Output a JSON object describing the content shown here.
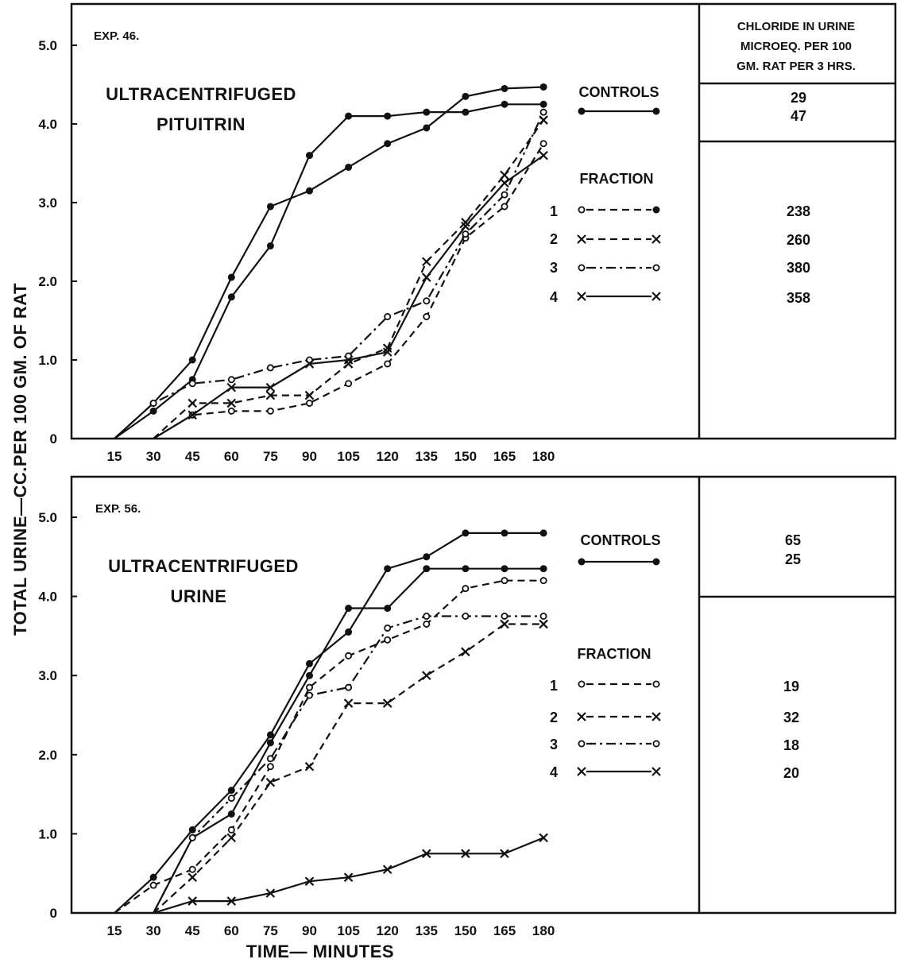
{
  "ylabel": "TOTAL URINE—CC.PER 100 GM. OF RAT",
  "xlabel": "TIME— MINUTES",
  "table_header": [
    "CHLORIDE IN URINE",
    "MICROEQ. PER 100",
    "GM. RAT PER 3 HRS."
  ],
  "legend": {
    "controls": "CONTROLS",
    "fraction": "FRACTION"
  },
  "chart_data": [
    {
      "type": "line",
      "exp": "EXP. 46.",
      "title_lines": [
        "ULTRACENTRIFUGED",
        "PITUITRIN"
      ],
      "x": [
        15,
        30,
        45,
        60,
        75,
        90,
        105,
        120,
        135,
        150,
        165,
        180
      ],
      "x_ticks": [
        "15",
        "30",
        "45",
        "60",
        "75",
        "90",
        "105",
        "120",
        "135",
        "150",
        "165",
        "180"
      ],
      "y_ticks": [
        "0",
        "1.0",
        "2.0",
        "3.0",
        "4.0",
        "5.0"
      ],
      "ylim": [
        0,
        5.0
      ],
      "controls_chloride": [
        "29",
        "47"
      ],
      "series": [
        {
          "group": "controls",
          "marker": "dot",
          "dash": "solid",
          "values": [
            0,
            0.45,
            1.0,
            2.05,
            2.95,
            3.15,
            3.45,
            3.75,
            3.95,
            4.35,
            4.45,
            4.47
          ]
        },
        {
          "group": "controls",
          "marker": "dot",
          "dash": "solid",
          "values": [
            0,
            0.35,
            0.75,
            1.8,
            2.45,
            3.6,
            4.1,
            4.1,
            4.15,
            4.15,
            4.25,
            4.25
          ]
        },
        {
          "group": "fraction",
          "name": "1",
          "marker": "circle-dot",
          "dash": "dashed",
          "chloride": "238",
          "values": [
            null,
            0,
            0.3,
            0.35,
            0.35,
            0.45,
            0.7,
            0.95,
            1.55,
            2.55,
            2.95,
            3.75
          ]
        },
        {
          "group": "fraction",
          "name": "2",
          "marker": "x",
          "dash": "dashed",
          "chloride": "260",
          "values": [
            null,
            0,
            0.45,
            0.45,
            0.55,
            0.55,
            0.95,
            1.15,
            2.25,
            2.75,
            3.35,
            4.05
          ]
        },
        {
          "group": "fraction",
          "name": "3",
          "marker": "circle",
          "dash": "dashdot",
          "chloride": "380",
          "values": [
            0,
            0.45,
            0.7,
            0.75,
            0.9,
            1.0,
            1.05,
            1.55,
            1.75,
            2.6,
            3.1,
            4.15
          ]
        },
        {
          "group": "fraction",
          "name": "4",
          "marker": "x",
          "dash": "solid",
          "chloride": "358",
          "values": [
            null,
            0,
            0.3,
            0.65,
            0.65,
            0.95,
            1.0,
            1.1,
            2.05,
            2.7,
            3.25,
            3.6
          ]
        }
      ]
    },
    {
      "type": "line",
      "exp": "EXP. 56.",
      "title_lines": [
        "ULTRACENTRIFUGED",
        "URINE"
      ],
      "x": [
        15,
        30,
        45,
        60,
        75,
        90,
        105,
        120,
        135,
        150,
        165,
        180
      ],
      "x_ticks": [
        "15",
        "30",
        "45",
        "60",
        "75",
        "90",
        "105",
        "120",
        "135",
        "150",
        "165",
        "180"
      ],
      "y_ticks": [
        "0",
        "1.0",
        "2.0",
        "3.0",
        "4.0",
        "5.0"
      ],
      "ylim": [
        0,
        5.0
      ],
      "controls_chloride": [
        "65",
        "25"
      ],
      "series": [
        {
          "group": "controls",
          "marker": "dot",
          "dash": "solid",
          "values": [
            0,
            0.45,
            1.05,
            1.55,
            2.25,
            3.15,
            3.55,
            4.35,
            4.5,
            4.8,
            4.8,
            4.8
          ]
        },
        {
          "group": "controls",
          "marker": "dot",
          "dash": "solid",
          "values": [
            null,
            0,
            0.95,
            1.25,
            2.15,
            3.0,
            3.85,
            3.85,
            4.35,
            4.35,
            4.35,
            4.35
          ]
        },
        {
          "group": "fraction",
          "name": "1",
          "marker": "circle",
          "dash": "dashed",
          "chloride": "19",
          "values": [
            0,
            0.35,
            0.55,
            1.05,
            1.85,
            2.85,
            3.25,
            3.45,
            3.65,
            4.1,
            4.2,
            4.2
          ]
        },
        {
          "group": "fraction",
          "name": "2",
          "marker": "x",
          "dash": "dashed",
          "chloride": "32",
          "values": [
            null,
            0,
            0.45,
            0.95,
            1.65,
            1.85,
            2.65,
            2.65,
            3.0,
            3.3,
            3.65,
            3.65
          ]
        },
        {
          "group": "fraction",
          "name": "3",
          "marker": "circle",
          "dash": "dashdot",
          "chloride": "18",
          "values": [
            null,
            0,
            0.95,
            1.45,
            1.95,
            2.75,
            2.85,
            3.6,
            3.75,
            3.75,
            3.75,
            3.75
          ]
        },
        {
          "group": "fraction",
          "name": "4",
          "marker": "x",
          "dash": "solid",
          "chloride": "20",
          "values": [
            null,
            0,
            0.15,
            0.15,
            0.25,
            0.4,
            0.45,
            0.55,
            0.75,
            0.75,
            0.75,
            0.95
          ]
        }
      ]
    }
  ]
}
